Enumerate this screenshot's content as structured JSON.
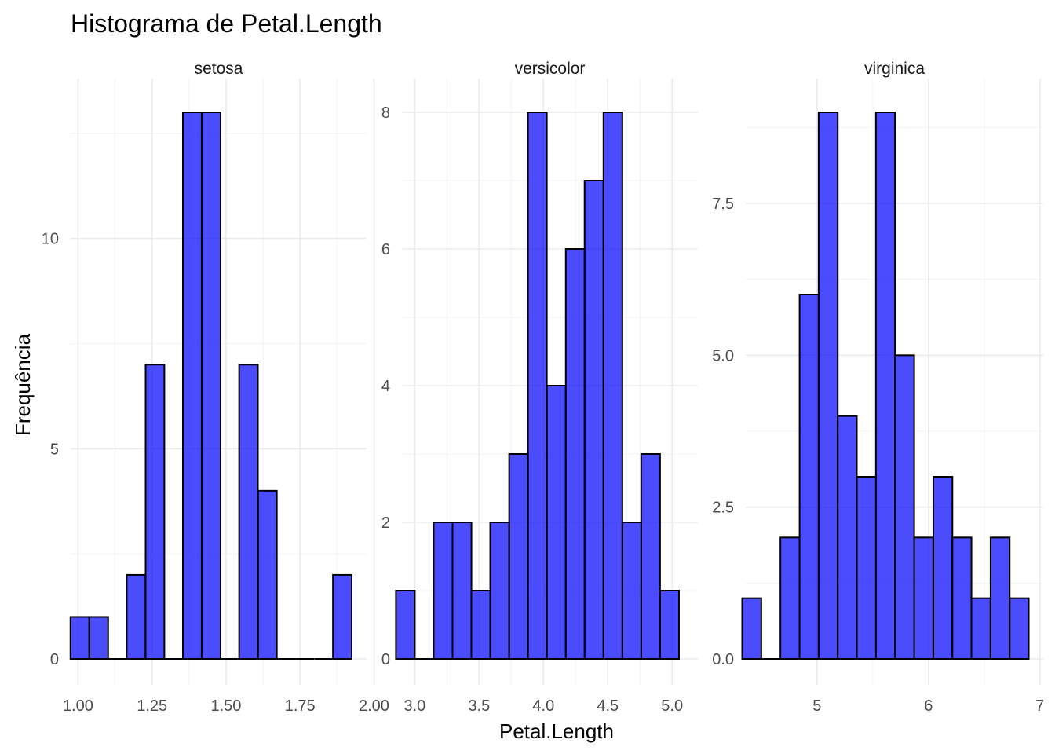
{
  "chart_data": {
    "type": "bar",
    "title": "Histograma de Petal.Length",
    "xlabel": "Petal.Length",
    "ylabel": "Frequência",
    "fill_color": "#0000ff",
    "fill_opacity": 0.7,
    "outline_color": "#000000",
    "grid": true,
    "legend": "none",
    "panels": [
      {
        "name": "setosa",
        "xlim": [
          0.975,
          1.975
        ],
        "ylim": [
          0,
          13
        ],
        "xticks": [
          1.0,
          1.25,
          1.5,
          1.75,
          2.0
        ],
        "xtick_labels": [
          "1.00",
          "1.25",
          "1.50",
          "1.75",
          "2.00"
        ],
        "yticks": [
          0,
          5,
          10
        ],
        "ytick_labels": [
          "0",
          "5",
          "10"
        ],
        "bin_width": 0.0633,
        "bins": [
          {
            "x": 1.006,
            "count": 1
          },
          {
            "x": 1.07,
            "count": 1
          },
          {
            "x": 1.133,
            "count": 0
          },
          {
            "x": 1.196,
            "count": 2
          },
          {
            "x": 1.26,
            "count": 7
          },
          {
            "x": 1.323,
            "count": 0
          },
          {
            "x": 1.386,
            "count": 13
          },
          {
            "x": 1.45,
            "count": 13
          },
          {
            "x": 1.513,
            "count": 0
          },
          {
            "x": 1.576,
            "count": 7
          },
          {
            "x": 1.64,
            "count": 4
          },
          {
            "x": 1.703,
            "count": 0
          },
          {
            "x": 1.766,
            "count": 0
          },
          {
            "x": 1.83,
            "count": 0
          },
          {
            "x": 1.893,
            "count": 2
          }
        ]
      },
      {
        "name": "versicolor",
        "xlim": [
          2.9,
          5.2
        ],
        "ylim": [
          0,
          8
        ],
        "xticks": [
          3.0,
          3.5,
          4.0,
          4.5,
          5.0
        ],
        "xtick_labels": [
          "3.0",
          "3.5",
          "4.0",
          "4.5",
          "5.0"
        ],
        "yticks": [
          0,
          2,
          4,
          6,
          8
        ],
        "ytick_labels": [
          "0",
          "2",
          "4",
          "6",
          "8"
        ],
        "bin_width": 0.1467,
        "bins": [
          {
            "x": 2.927,
            "count": 1
          },
          {
            "x": 3.073,
            "count": 0
          },
          {
            "x": 3.22,
            "count": 2
          },
          {
            "x": 3.367,
            "count": 2
          },
          {
            "x": 3.513,
            "count": 1
          },
          {
            "x": 3.66,
            "count": 2
          },
          {
            "x": 3.807,
            "count": 3
          },
          {
            "x": 3.953,
            "count": 8
          },
          {
            "x": 4.1,
            "count": 4
          },
          {
            "x": 4.247,
            "count": 6
          },
          {
            "x": 4.393,
            "count": 7
          },
          {
            "x": 4.54,
            "count": 8
          },
          {
            "x": 4.687,
            "count": 2
          },
          {
            "x": 4.833,
            "count": 3
          },
          {
            "x": 4.98,
            "count": 1
          }
        ]
      },
      {
        "name": "virginica",
        "xlim": [
          4.36,
          7.03
        ],
        "ylim": [
          0,
          9
        ],
        "xticks": [
          5,
          6,
          7
        ],
        "xtick_labels": [
          "5",
          "6",
          "7"
        ],
        "yticks": [
          0,
          2.5,
          5,
          7.5
        ],
        "ytick_labels": [
          "0.0",
          "2.5",
          "5.0",
          "7.5"
        ],
        "bin_width": 0.1714,
        "bins": [
          {
            "x": 4.414,
            "count": 1
          },
          {
            "x": 4.586,
            "count": 0
          },
          {
            "x": 4.757,
            "count": 2
          },
          {
            "x": 4.929,
            "count": 6
          },
          {
            "x": 5.1,
            "count": 9
          },
          {
            "x": 5.271,
            "count": 4
          },
          {
            "x": 5.443,
            "count": 3
          },
          {
            "x": 5.614,
            "count": 9
          },
          {
            "x": 5.786,
            "count": 5
          },
          {
            "x": 5.957,
            "count": 2
          },
          {
            "x": 6.129,
            "count": 3
          },
          {
            "x": 6.3,
            "count": 2
          },
          {
            "x": 6.471,
            "count": 1
          },
          {
            "x": 6.643,
            "count": 2
          },
          {
            "x": 6.814,
            "count": 1
          }
        ]
      }
    ]
  }
}
